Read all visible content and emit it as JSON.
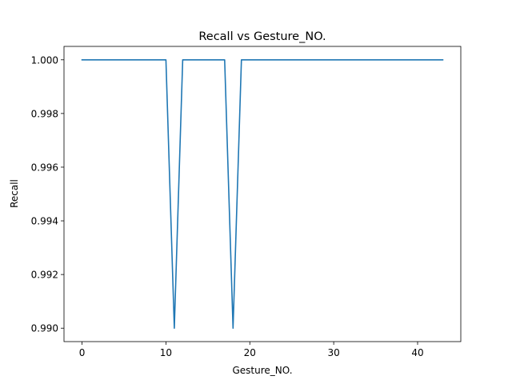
{
  "chart_data": {
    "type": "line",
    "title": "Recall vs Gesture_NO.",
    "xlabel": "Gesture_NO.",
    "ylabel": "Recall",
    "xlim": [
      -2.15,
      45.15
    ],
    "ylim": [
      0.9895,
      1.0005
    ],
    "xticks": [
      0,
      10,
      20,
      30,
      40
    ],
    "xtick_labels": [
      "0",
      "10",
      "20",
      "30",
      "40"
    ],
    "yticks": [
      0.99,
      0.992,
      0.994,
      0.996,
      0.998,
      1.0
    ],
    "ytick_labels": [
      "0.990",
      "0.992",
      "0.994",
      "0.996",
      "0.998",
      "1.000"
    ],
    "grid": false,
    "series": [
      {
        "color": "#1f77b4",
        "x": [
          0,
          1,
          2,
          3,
          4,
          5,
          6,
          7,
          8,
          9,
          10,
          11,
          12,
          13,
          14,
          15,
          16,
          17,
          18,
          19,
          20,
          21,
          22,
          23,
          24,
          25,
          26,
          27,
          28,
          29,
          30,
          31,
          32,
          33,
          34,
          35,
          36,
          37,
          38,
          39,
          40,
          41,
          42,
          43
        ],
        "values": [
          1.0,
          1.0,
          1.0,
          1.0,
          1.0,
          1.0,
          1.0,
          1.0,
          1.0,
          1.0,
          1.0,
          0.99,
          1.0,
          1.0,
          1.0,
          1.0,
          1.0,
          1.0,
          0.99,
          1.0,
          1.0,
          1.0,
          1.0,
          1.0,
          1.0,
          1.0,
          1.0,
          1.0,
          1.0,
          1.0,
          1.0,
          1.0,
          1.0,
          1.0,
          1.0,
          1.0,
          1.0,
          1.0,
          1.0,
          1.0,
          1.0,
          1.0,
          1.0,
          1.0
        ]
      }
    ]
  }
}
